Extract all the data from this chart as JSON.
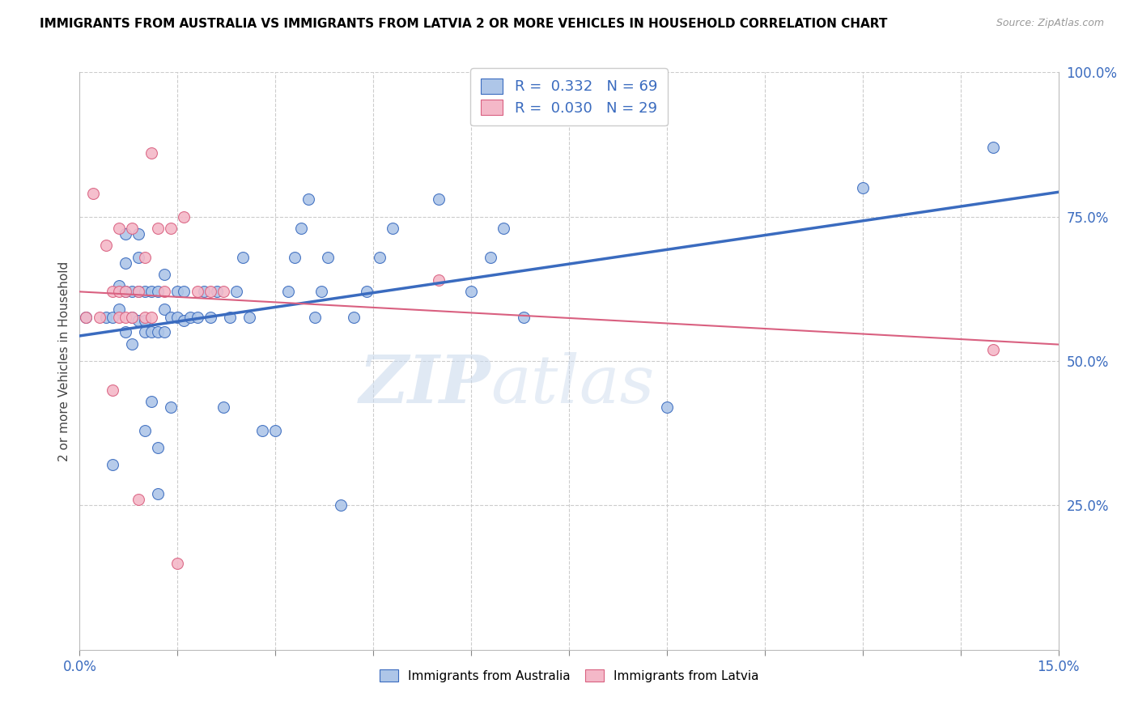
{
  "title": "IMMIGRANTS FROM AUSTRALIA VS IMMIGRANTS FROM LATVIA 2 OR MORE VEHICLES IN HOUSEHOLD CORRELATION CHART",
  "source": "Source: ZipAtlas.com",
  "ylabel": "2 or more Vehicles in Household",
  "xmin": 0.0,
  "xmax": 0.15,
  "ymin": 0.0,
  "ymax": 1.0,
  "R_australia": 0.332,
  "N_australia": 69,
  "R_latvia": 0.03,
  "N_latvia": 29,
  "color_australia": "#aec6e8",
  "color_latvia": "#f4b8c8",
  "line_color_australia": "#3a6bbf",
  "line_color_latvia": "#d96080",
  "watermark_zip": "ZIP",
  "watermark_atlas": "atlas",
  "legend_label_australia": "Immigrants from Australia",
  "legend_label_latvia": "Immigrants from Latvia",
  "australia_x": [
    0.001,
    0.004,
    0.005,
    0.005,
    0.006,
    0.006,
    0.007,
    0.007,
    0.007,
    0.007,
    0.008,
    0.008,
    0.008,
    0.009,
    0.009,
    0.009,
    0.009,
    0.01,
    0.01,
    0.01,
    0.01,
    0.011,
    0.011,
    0.011,
    0.012,
    0.012,
    0.012,
    0.012,
    0.013,
    0.013,
    0.013,
    0.014,
    0.014,
    0.015,
    0.015,
    0.016,
    0.016,
    0.017,
    0.018,
    0.019,
    0.02,
    0.021,
    0.022,
    0.023,
    0.024,
    0.025,
    0.026,
    0.028,
    0.03,
    0.032,
    0.033,
    0.034,
    0.035,
    0.036,
    0.037,
    0.038,
    0.04,
    0.042,
    0.044,
    0.046,
    0.048,
    0.055,
    0.06,
    0.063,
    0.065,
    0.068,
    0.09,
    0.12,
    0.14
  ],
  "australia_y": [
    0.575,
    0.575,
    0.32,
    0.575,
    0.59,
    0.63,
    0.55,
    0.62,
    0.67,
    0.72,
    0.53,
    0.575,
    0.62,
    0.57,
    0.62,
    0.68,
    0.72,
    0.38,
    0.55,
    0.57,
    0.62,
    0.43,
    0.55,
    0.62,
    0.27,
    0.35,
    0.55,
    0.62,
    0.55,
    0.59,
    0.65,
    0.42,
    0.575,
    0.575,
    0.62,
    0.57,
    0.62,
    0.575,
    0.575,
    0.62,
    0.575,
    0.62,
    0.42,
    0.575,
    0.62,
    0.68,
    0.575,
    0.38,
    0.38,
    0.62,
    0.68,
    0.73,
    0.78,
    0.575,
    0.62,
    0.68,
    0.25,
    0.575,
    0.62,
    0.68,
    0.73,
    0.78,
    0.62,
    0.68,
    0.73,
    0.575,
    0.42,
    0.8,
    0.87
  ],
  "latvia_x": [
    0.001,
    0.002,
    0.003,
    0.004,
    0.005,
    0.005,
    0.006,
    0.006,
    0.006,
    0.007,
    0.007,
    0.008,
    0.008,
    0.009,
    0.009,
    0.01,
    0.01,
    0.011,
    0.011,
    0.012,
    0.013,
    0.014,
    0.015,
    0.016,
    0.018,
    0.02,
    0.022,
    0.055,
    0.14
  ],
  "latvia_y": [
    0.575,
    0.79,
    0.575,
    0.7,
    0.62,
    0.45,
    0.575,
    0.62,
    0.73,
    0.575,
    0.62,
    0.575,
    0.73,
    0.62,
    0.26,
    0.575,
    0.68,
    0.575,
    0.86,
    0.73,
    0.62,
    0.73,
    0.15,
    0.75,
    0.62,
    0.62,
    0.62,
    0.64,
    0.52
  ]
}
